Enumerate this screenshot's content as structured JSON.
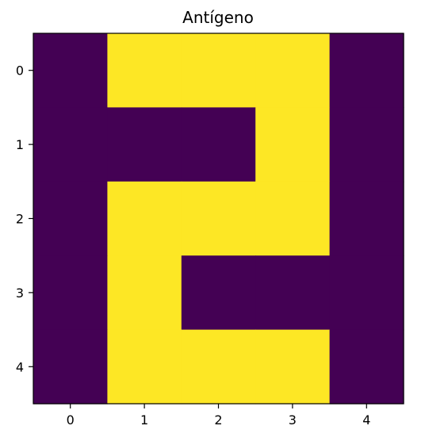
{
  "chart_data": {
    "type": "heatmap",
    "title": "Antígeno",
    "xlabel": "",
    "ylabel": "",
    "x_tick_labels": [
      "0",
      "1",
      "2",
      "3",
      "4"
    ],
    "y_tick_labels": [
      "0",
      "1",
      "2",
      "3",
      "4"
    ],
    "rows": 5,
    "cols": 5,
    "values": [
      [
        0,
        1,
        1,
        1,
        0
      ],
      [
        0,
        0,
        0,
        1,
        0
      ],
      [
        0,
        1,
        1,
        1,
        0
      ],
      [
        0,
        1,
        0,
        0,
        0
      ],
      [
        0,
        1,
        1,
        1,
        0
      ]
    ],
    "colormap": {
      "0": "#440154",
      "1": "#fde725"
    },
    "grid": false,
    "colorbar": false
  }
}
